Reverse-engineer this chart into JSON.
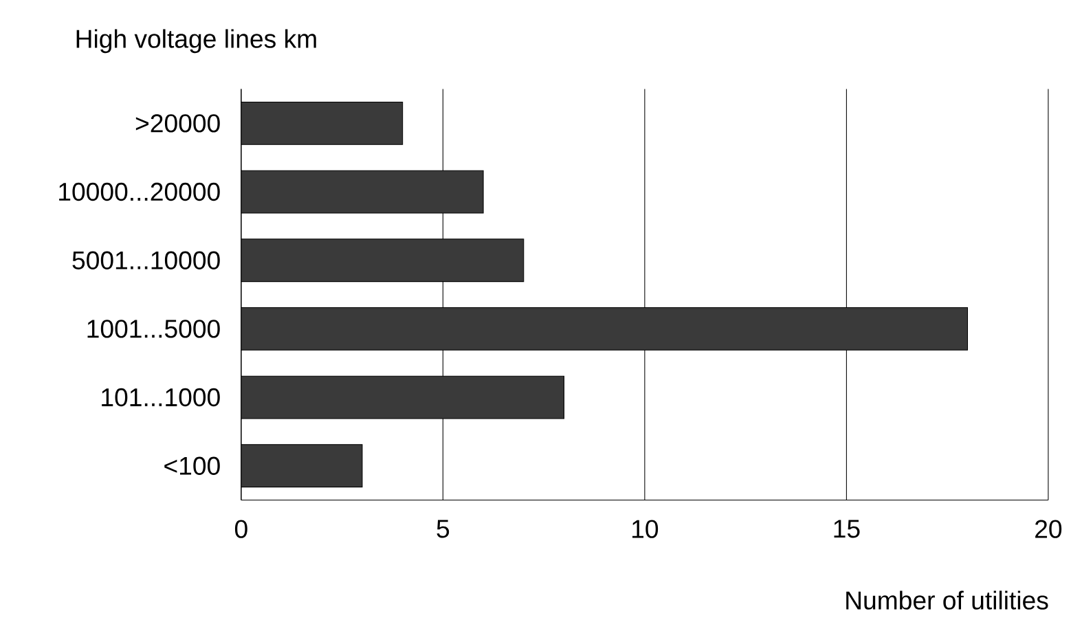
{
  "chart_data": {
    "type": "bar",
    "orientation": "horizontal",
    "xlabel": "Number of utilities",
    "ylabel": "High voltage lines km",
    "categories": [
      ">20000",
      "10000...20000",
      "5001...10000",
      "1001...5000",
      "101...1000",
      "<100"
    ],
    "values": [
      4,
      6,
      7,
      18,
      8,
      3
    ],
    "color": "#3a3a3a",
    "xlim": [
      0,
      20
    ],
    "xticks": [
      0,
      5,
      10,
      15,
      20
    ],
    "grid": "x"
  }
}
